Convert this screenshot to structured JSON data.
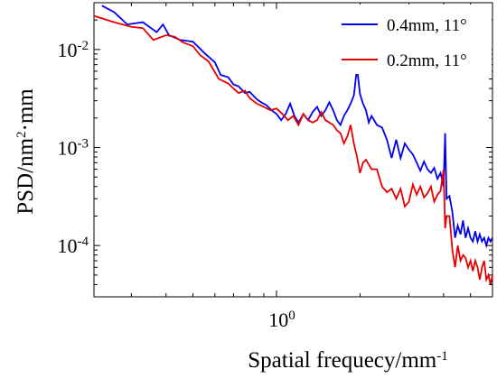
{
  "chart_data": {
    "type": "line",
    "xlabel": {
      "base": "Spatial frequecy/mm",
      "sup": "-1"
    },
    "ylabel": {
      "pre": "PSD/nm",
      "sup": "2",
      "post": "·mm"
    },
    "xscale": "log",
    "yscale": "log",
    "xlim": [
      0.22,
      6.0
    ],
    "ylim": [
      3e-05,
      0.03
    ],
    "grid": false,
    "legend_position": "top-right",
    "x_ticks": [
      {
        "value": 1,
        "base": "10",
        "sup": "0"
      }
    ],
    "y_ticks": [
      {
        "value": 0.01,
        "base": "10",
        "sup": "-2"
      },
      {
        "value": 0.001,
        "base": "10",
        "sup": "-3"
      },
      {
        "value": 0.0001,
        "base": "10",
        "sup": "-4"
      }
    ],
    "series": [
      {
        "name": "0.4mm, 11°",
        "color": "#0000ee",
        "points": [
          [
            0.235,
            0.028
          ],
          [
            0.26,
            0.024
          ],
          [
            0.29,
            0.018
          ],
          [
            0.33,
            0.019
          ],
          [
            0.37,
            0.015
          ],
          [
            0.39,
            0.018
          ],
          [
            0.41,
            0.014
          ],
          [
            0.45,
            0.0125
          ],
          [
            0.5,
            0.012
          ],
          [
            0.55,
            0.0092
          ],
          [
            0.6,
            0.0074
          ],
          [
            0.63,
            0.0055
          ],
          [
            0.67,
            0.0052
          ],
          [
            0.7,
            0.0044
          ],
          [
            0.73,
            0.0042
          ],
          [
            0.77,
            0.0036
          ],
          [
            0.8,
            0.0037
          ],
          [
            0.85,
            0.0031
          ],
          [
            0.88,
            0.0029
          ],
          [
            0.92,
            0.0027
          ],
          [
            0.96,
            0.0024
          ],
          [
            1.0,
            0.0022
          ],
          [
            1.04,
            0.0019
          ],
          [
            1.08,
            0.0022
          ],
          [
            1.12,
            0.0028
          ],
          [
            1.16,
            0.0021
          ],
          [
            1.2,
            0.0018
          ],
          [
            1.25,
            0.0022
          ],
          [
            1.3,
            0.0019
          ],
          [
            1.35,
            0.0023
          ],
          [
            1.4,
            0.0026
          ],
          [
            1.45,
            0.0021
          ],
          [
            1.5,
            0.0024
          ],
          [
            1.55,
            0.0029
          ],
          [
            1.6,
            0.0024
          ],
          [
            1.65,
            0.0019
          ],
          [
            1.7,
            0.0017
          ],
          [
            1.75,
            0.0021
          ],
          [
            1.8,
            0.0024
          ],
          [
            1.85,
            0.0028
          ],
          [
            1.9,
            0.0034
          ],
          [
            1.95,
            0.0065
          ],
          [
            2.0,
            0.0035
          ],
          [
            2.05,
            0.0028
          ],
          [
            2.1,
            0.0024
          ],
          [
            2.15,
            0.0018
          ],
          [
            2.2,
            0.0021
          ],
          [
            2.3,
            0.0017
          ],
          [
            2.4,
            0.0016
          ],
          [
            2.5,
            0.0012
          ],
          [
            2.6,
            0.00078
          ],
          [
            2.7,
            0.0012
          ],
          [
            2.8,
            0.00078
          ],
          [
            2.9,
            0.0011
          ],
          [
            3.0,
            0.00095
          ],
          [
            3.1,
            0.00085
          ],
          [
            3.2,
            0.0007
          ],
          [
            3.3,
            0.00058
          ],
          [
            3.4,
            0.00072
          ],
          [
            3.5,
            0.0006
          ],
          [
            3.6,
            0.00055
          ],
          [
            3.7,
            0.00062
          ],
          [
            3.8,
            0.00048
          ],
          [
            3.9,
            0.00055
          ],
          [
            4.0,
            0.0004
          ],
          [
            4.05,
            0.0014
          ],
          [
            4.1,
            0.0003
          ],
          [
            4.2,
            0.00032
          ],
          [
            4.3,
            0.00022
          ],
          [
            4.4,
            0.00012
          ],
          [
            4.5,
            0.00016
          ],
          [
            4.6,
            0.00013
          ],
          [
            4.7,
            0.00018
          ],
          [
            4.8,
            0.00012
          ],
          [
            4.9,
            0.00015
          ],
          [
            5.0,
            0.00012
          ],
          [
            5.1,
            0.00011
          ],
          [
            5.2,
            0.00014
          ],
          [
            5.3,
            0.00011
          ],
          [
            5.4,
            0.00013
          ],
          [
            5.5,
            0.00011
          ],
          [
            5.6,
            0.00012
          ],
          [
            5.7,
            0.0001
          ],
          [
            5.8,
            0.00012
          ],
          [
            5.9,
            0.00011
          ],
          [
            6.0,
            0.00012
          ]
        ]
      },
      {
        "name": "0.2mm, 11°",
        "color": "#e60000",
        "points": [
          [
            0.22,
            0.022
          ],
          [
            0.26,
            0.019
          ],
          [
            0.3,
            0.017
          ],
          [
            0.33,
            0.0165
          ],
          [
            0.36,
            0.0125
          ],
          [
            0.4,
            0.014
          ],
          [
            0.43,
            0.0135
          ],
          [
            0.46,
            0.0118
          ],
          [
            0.5,
            0.0108
          ],
          [
            0.53,
            0.0088
          ],
          [
            0.57,
            0.0075
          ],
          [
            0.62,
            0.005
          ],
          [
            0.67,
            0.0045
          ],
          [
            0.7,
            0.004
          ],
          [
            0.73,
            0.0036
          ],
          [
            0.77,
            0.0038
          ],
          [
            0.8,
            0.0032
          ],
          [
            0.85,
            0.0028
          ],
          [
            0.9,
            0.0026
          ],
          [
            0.95,
            0.0024
          ],
          [
            1.0,
            0.0025
          ],
          [
            1.05,
            0.0022
          ],
          [
            1.1,
            0.0019
          ],
          [
            1.15,
            0.0021
          ],
          [
            1.2,
            0.0017
          ],
          [
            1.25,
            0.0022
          ],
          [
            1.3,
            0.0019
          ],
          [
            1.35,
            0.0018
          ],
          [
            1.4,
            0.0019
          ],
          [
            1.45,
            0.0023
          ],
          [
            1.5,
            0.0019
          ],
          [
            1.55,
            0.0018
          ],
          [
            1.6,
            0.0017
          ],
          [
            1.65,
            0.0015
          ],
          [
            1.7,
            0.0014
          ],
          [
            1.75,
            0.0011
          ],
          [
            1.8,
            0.0013
          ],
          [
            1.85,
            0.0017
          ],
          [
            1.9,
            0.0011
          ],
          [
            1.95,
            0.0008
          ],
          [
            2.0,
            0.00055
          ],
          [
            2.05,
            0.0007
          ],
          [
            2.1,
            0.00075
          ],
          [
            2.2,
            0.0006
          ],
          [
            2.3,
            0.0006
          ],
          [
            2.4,
            0.0004
          ],
          [
            2.5,
            0.00035
          ],
          [
            2.6,
            0.00038
          ],
          [
            2.7,
            0.0003
          ],
          [
            2.8,
            0.00038
          ],
          [
            2.9,
            0.00025
          ],
          [
            3.0,
            0.00028
          ],
          [
            3.1,
            0.00042
          ],
          [
            3.2,
            0.00033
          ],
          [
            3.3,
            0.0004
          ],
          [
            3.4,
            0.00031
          ],
          [
            3.5,
            0.00034
          ],
          [
            3.6,
            0.0004
          ],
          [
            3.7,
            0.00028
          ],
          [
            3.8,
            0.00033
          ],
          [
            3.9,
            0.00036
          ],
          [
            4.0,
            0.0006
          ],
          [
            4.05,
            0.00015
          ],
          [
            4.1,
            0.0002
          ],
          [
            4.2,
            0.0002
          ],
          [
            4.3,
            9e-05
          ],
          [
            4.4,
            6e-05
          ],
          [
            4.5,
            0.0001
          ],
          [
            4.6,
            7e-05
          ],
          [
            4.7,
            8e-05
          ],
          [
            4.8,
            7.5e-05
          ],
          [
            4.9,
            6e-05
          ],
          [
            5.0,
            7e-05
          ],
          [
            5.1,
            5.5e-05
          ],
          [
            5.2,
            7e-05
          ],
          [
            5.3,
            6e-05
          ],
          [
            5.4,
            4.5e-05
          ],
          [
            5.5,
            6e-05
          ],
          [
            5.6,
            7e-05
          ],
          [
            5.7,
            4.5e-05
          ],
          [
            5.8,
            5e-05
          ],
          [
            5.9,
            4e-05
          ],
          [
            6.0,
            5e-05
          ]
        ]
      }
    ]
  }
}
